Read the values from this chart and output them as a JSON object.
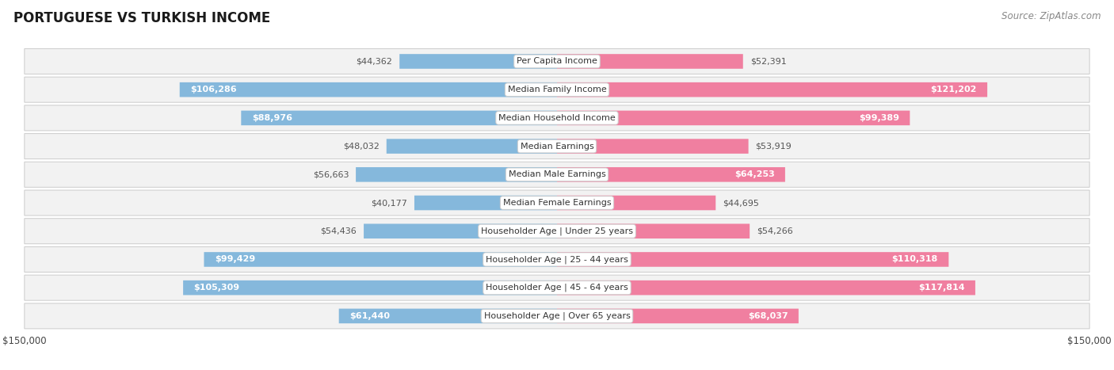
{
  "title": "PORTUGUESE VS TURKISH INCOME",
  "source": "Source: ZipAtlas.com",
  "max_value": 150000,
  "categories": [
    "Per Capita Income",
    "Median Family Income",
    "Median Household Income",
    "Median Earnings",
    "Median Male Earnings",
    "Median Female Earnings",
    "Householder Age | Under 25 years",
    "Householder Age | 25 - 44 years",
    "Householder Age | 45 - 64 years",
    "Householder Age | Over 65 years"
  ],
  "portuguese_values": [
    44362,
    106286,
    88976,
    48032,
    56663,
    40177,
    54436,
    99429,
    105309,
    61440
  ],
  "turkish_values": [
    52391,
    121202,
    99389,
    53919,
    64253,
    44695,
    54266,
    110318,
    117814,
    68037
  ],
  "portuguese_labels": [
    "$44,362",
    "$106,286",
    "$88,976",
    "$48,032",
    "$56,663",
    "$40,177",
    "$54,436",
    "$99,429",
    "$105,309",
    "$61,440"
  ],
  "turkish_labels": [
    "$52,391",
    "$121,202",
    "$99,389",
    "$53,919",
    "$64,253",
    "$44,695",
    "$54,266",
    "$110,318",
    "$117,814",
    "$68,037"
  ],
  "portuguese_color": "#85B8DC",
  "turkish_color": "#F07FA0",
  "portuguese_color_light": "#AECDE8",
  "turkish_color_light": "#F5AABB",
  "portuguese_label_color_inside": "#FFFFFF",
  "portuguese_label_color_outside": "#555555",
  "turkish_label_color_inside": "#FFFFFF",
  "turkish_label_color_outside": "#555555",
  "bar_height": 0.52,
  "row_bg_color": "#F2F2F2",
  "row_border_color": "#CCCCCC",
  "center_label_bg": "#FFFFFF",
  "center_label_border": "#CCCCCC",
  "background_color": "#FFFFFF",
  "title_fontsize": 12,
  "source_fontsize": 8.5,
  "label_fontsize": 8,
  "category_fontsize": 8,
  "axis_label_fontsize": 8.5,
  "inside_threshold": 60000
}
